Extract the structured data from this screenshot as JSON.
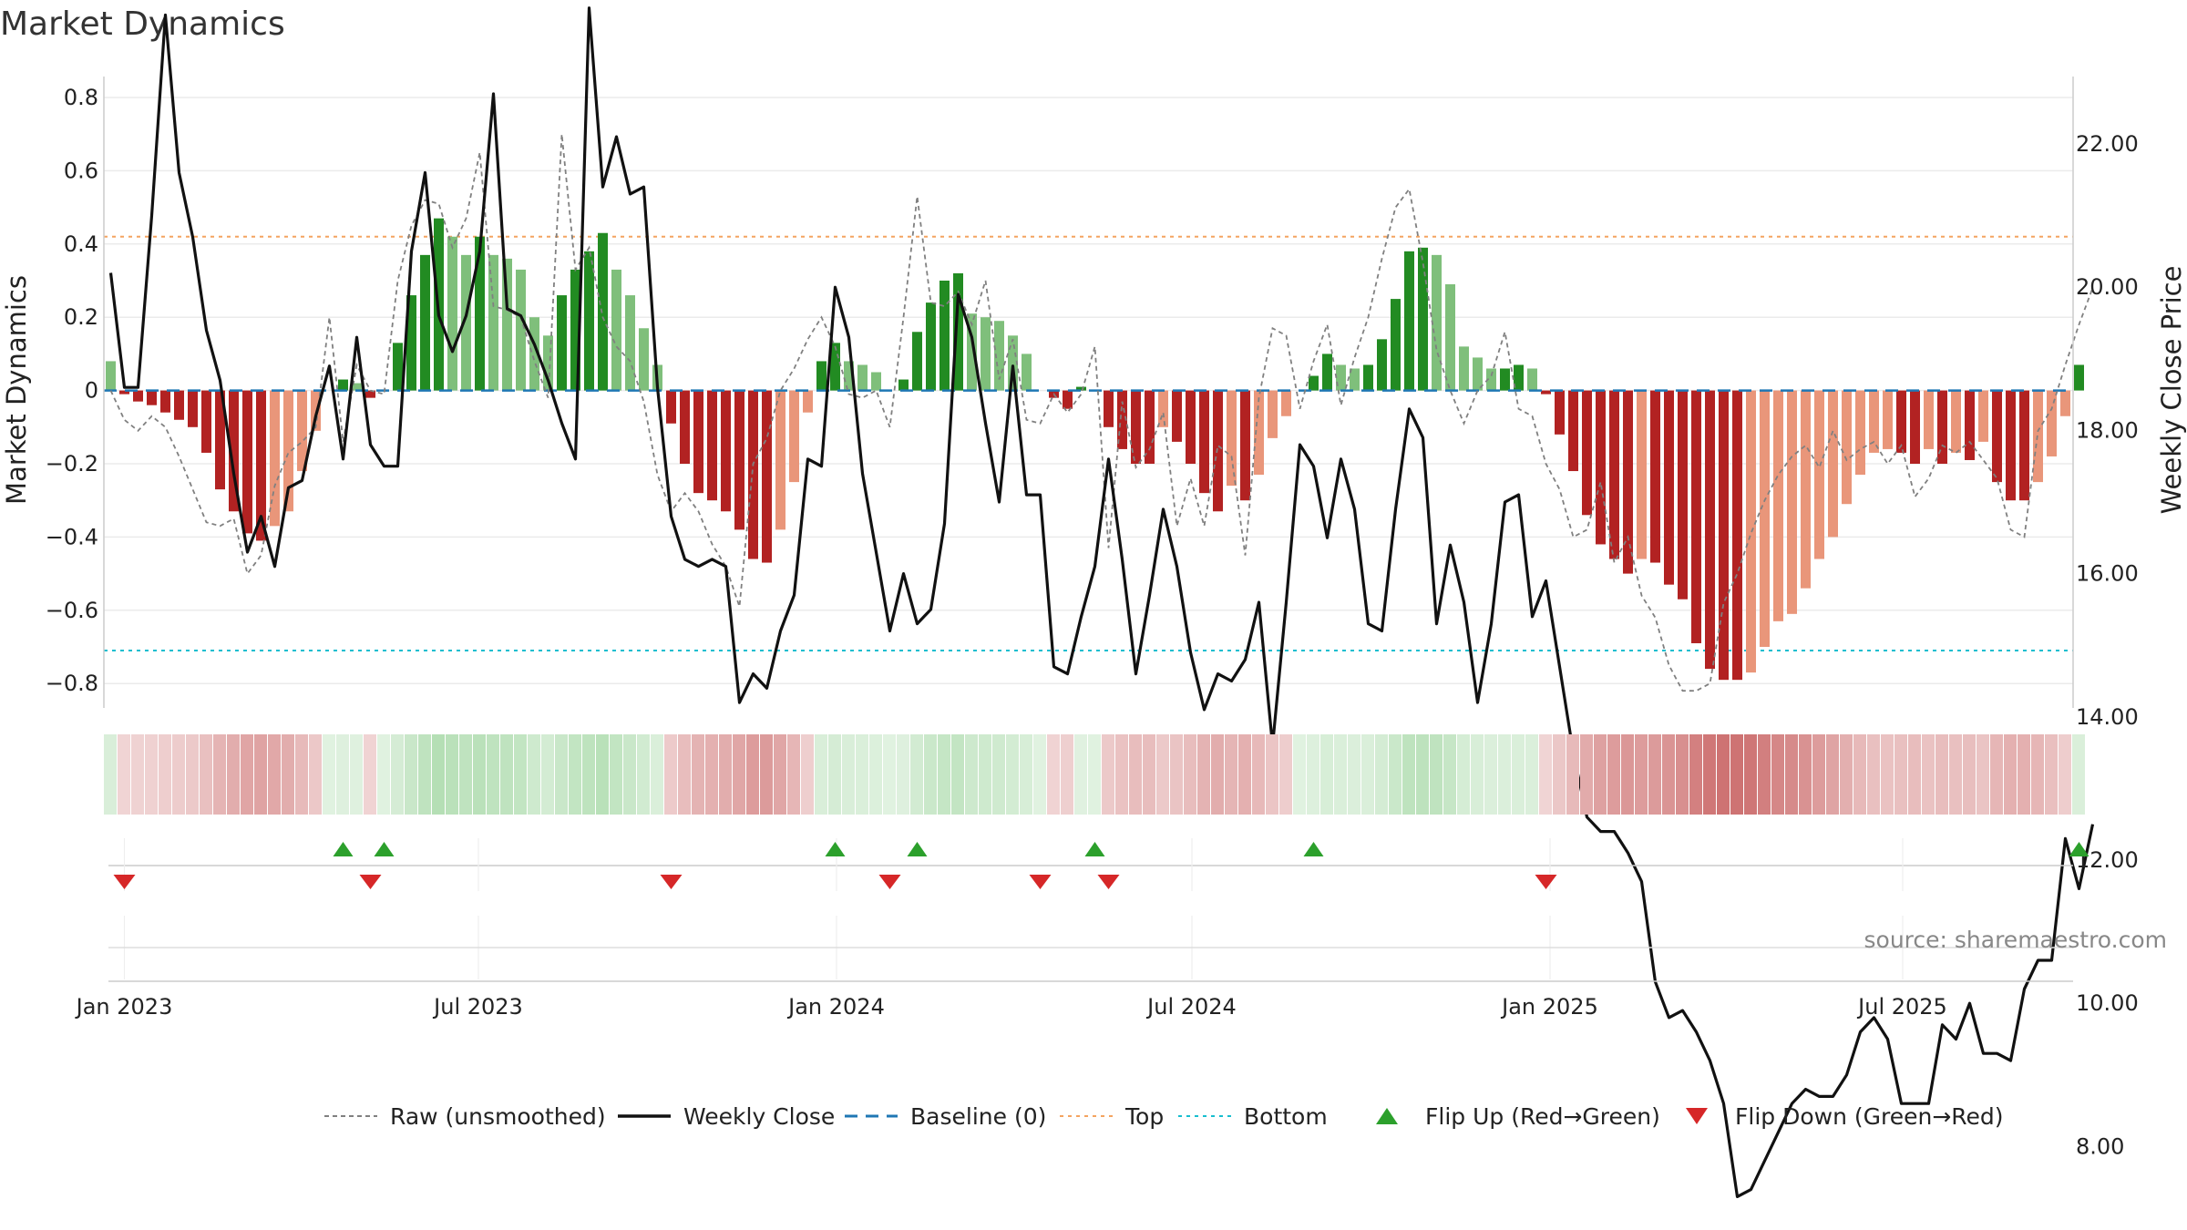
{
  "chart_data": {
    "type": "bar",
    "title": "Market Dynamics",
    "ylabel": "Market Dynamics",
    "y2label": "Weekly Close Price",
    "ylim": [
      -0.86,
      0.82
    ],
    "y2lim": [
      6.4,
      24.0
    ],
    "yticks": [
      "0.8",
      "0.6",
      "0.4",
      "0.2",
      "0",
      "−0.2",
      "−0.4",
      "−0.6",
      "−0.8"
    ],
    "y2ticks": [
      "22.00",
      "20.00",
      "18.00",
      "16.00",
      "14.00",
      "12.00",
      "10.00",
      "8.00"
    ],
    "x_start": "2022-12-26",
    "week_days": 7,
    "xticks": [
      {
        "label": "Jan 2023",
        "week": 1.0
      },
      {
        "label": "Jul 2023",
        "week": 26.9
      },
      {
        "label": "Jan 2024",
        "week": 53.1
      },
      {
        "label": "Jul 2024",
        "week": 79.1
      },
      {
        "label": "Jan 2025",
        "week": 105.3
      },
      {
        "label": "Jul 2025",
        "week": 131.1
      }
    ],
    "top_threshold": 0.42,
    "bottom_threshold": -0.71,
    "baseline": 0,
    "bars": [
      0.08,
      -0.01,
      -0.03,
      -0.04,
      -0.06,
      -0.08,
      -0.1,
      -0.17,
      -0.27,
      -0.33,
      -0.39,
      -0.41,
      -0.37,
      -0.33,
      -0.22,
      -0.11,
      -0.0,
      0.03,
      0.02,
      -0.02,
      0.0,
      0.13,
      0.26,
      0.37,
      0.47,
      0.42,
      0.37,
      0.42,
      0.37,
      0.36,
      0.33,
      0.2,
      0.15,
      0.26,
      0.33,
      0.38,
      0.43,
      0.33,
      0.26,
      0.17,
      0.07,
      -0.09,
      -0.2,
      -0.28,
      -0.3,
      -0.33,
      -0.38,
      -0.46,
      -0.47,
      -0.38,
      -0.25,
      -0.06,
      0.08,
      0.13,
      0.08,
      0.07,
      0.05,
      0.0,
      0.03,
      0.16,
      0.24,
      0.3,
      0.32,
      0.21,
      0.2,
      0.19,
      0.15,
      0.1,
      -0.0,
      -0.02,
      -0.05,
      0.01,
      0.0,
      -0.1,
      -0.16,
      -0.2,
      -0.2,
      -0.1,
      -0.14,
      -0.2,
      -0.28,
      -0.33,
      -0.26,
      -0.3,
      -0.23,
      -0.13,
      -0.07,
      0.0,
      0.04,
      0.1,
      0.07,
      0.06,
      0.07,
      0.14,
      0.25,
      0.38,
      0.39,
      0.37,
      0.29,
      0.12,
      0.09,
      0.06,
      0.06,
      0.07,
      0.06,
      -0.01,
      -0.12,
      -0.22,
      -0.34,
      -0.42,
      -0.46,
      -0.5,
      -0.46,
      -0.47,
      -0.53,
      -0.57,
      -0.69,
      -0.76,
      -0.79,
      -0.79,
      -0.77,
      -0.7,
      -0.63,
      -0.61,
      -0.54,
      -0.46,
      -0.4,
      -0.31,
      -0.23,
      -0.17,
      -0.16,
      -0.17,
      -0.2,
      -0.16,
      -0.2,
      -0.17,
      -0.19,
      -0.14,
      -0.25,
      -0.3,
      -0.3,
      -0.25,
      -0.18,
      -0.07,
      0.07
    ],
    "raw": [
      -0.0,
      -0.08,
      -0.11,
      -0.07,
      -0.1,
      -0.18,
      -0.27,
      -0.36,
      -0.37,
      -0.35,
      -0.5,
      -0.45,
      -0.26,
      -0.17,
      -0.14,
      -0.1,
      0.2,
      -0.14,
      0.07,
      0.0,
      -0.01,
      0.3,
      0.45,
      0.52,
      0.51,
      0.39,
      0.47,
      0.65,
      0.23,
      0.22,
      0.2,
      0.08,
      -0.02,
      0.7,
      0.33,
      0.39,
      0.2,
      0.12,
      0.08,
      -0.03,
      -0.23,
      -0.33,
      -0.28,
      -0.33,
      -0.42,
      -0.48,
      -0.59,
      -0.2,
      -0.13,
      -0.0,
      0.06,
      0.14,
      0.2,
      0.12,
      -0.01,
      -0.02,
      -0.0,
      -0.1,
      0.2,
      0.53,
      0.24,
      0.23,
      0.27,
      0.18,
      0.3,
      0.03,
      0.14,
      -0.08,
      -0.09,
      -0.01,
      -0.06,
      -0.01,
      0.12,
      -0.43,
      -0.03,
      -0.21,
      -0.16,
      -0.06,
      -0.37,
      -0.24,
      -0.37,
      -0.15,
      -0.18,
      -0.45,
      -0.02,
      0.17,
      0.15,
      -0.05,
      0.08,
      0.18,
      -0.04,
      0.09,
      0.2,
      0.36,
      0.5,
      0.55,
      0.35,
      0.11,
      -0.0,
      -0.09,
      0.0,
      0.04,
      0.16,
      -0.05,
      -0.07,
      -0.2,
      -0.27,
      -0.4,
      -0.38,
      -0.25,
      -0.47,
      -0.4,
      -0.56,
      -0.62,
      -0.75,
      -0.82,
      -0.82,
      -0.8,
      -0.58,
      -0.5,
      -0.39,
      -0.3,
      -0.23,
      -0.18,
      -0.15,
      -0.21,
      -0.11,
      -0.19,
      -0.16,
      -0.14,
      -0.2,
      -0.15,
      -0.29,
      -0.24,
      -0.15,
      -0.17,
      -0.14,
      -0.19,
      -0.24,
      -0.38,
      -0.4,
      -0.11,
      -0.05,
      0.07,
      0.18,
      0.28
    ],
    "close": [
      20.2,
      18.6,
      18.6,
      21.0,
      23.8,
      21.6,
      20.7,
      19.4,
      18.7,
      17.4,
      16.3,
      16.8,
      16.1,
      17.2,
      17.3,
      18.2,
      18.9,
      17.6,
      19.3,
      17.8,
      17.5,
      17.5,
      20.5,
      21.6,
      19.6,
      19.1,
      19.6,
      20.5,
      22.7,
      19.7,
      19.6,
      19.2,
      18.7,
      18.1,
      17.6,
      23.9,
      21.4,
      22.1,
      21.3,
      21.4,
      18.6,
      16.8,
      16.2,
      16.1,
      16.2,
      16.1,
      14.2,
      14.6,
      14.4,
      15.2,
      15.7,
      17.6,
      17.5,
      20.0,
      19.3,
      17.4,
      16.3,
      15.2,
      16.0,
      15.3,
      15.5,
      16.7,
      19.9,
      19.3,
      18.1,
      17.0,
      18.9,
      17.1,
      17.1,
      14.7,
      14.6,
      15.4,
      16.1,
      17.6,
      16.2,
      14.6,
      15.7,
      16.9,
      16.1,
      14.9,
      14.1,
      14.6,
      14.5,
      14.8,
      15.6,
      13.6,
      15.6,
      17.8,
      17.5,
      16.5,
      17.6,
      16.9,
      15.3,
      15.2,
      16.9,
      18.3,
      17.9,
      15.3,
      16.4,
      15.6,
      14.2,
      15.3,
      17.0,
      17.1,
      15.4,
      15.9,
      14.7,
      13.5,
      12.6,
      12.4,
      12.4,
      12.1,
      11.7,
      10.3,
      9.8,
      9.9,
      9.6,
      9.2,
      8.6,
      7.3,
      7.4,
      7.8,
      8.2,
      8.6,
      8.8,
      8.7,
      8.7,
      9.0,
      9.6,
      9.8,
      9.5,
      8.6,
      8.6,
      8.6,
      9.7,
      9.5,
      10.0,
      9.3,
      9.3,
      9.2,
      10.2,
      10.6,
      10.6,
      12.3,
      11.6,
      12.5
    ],
    "flip_up_weeks": [
      17,
      20,
      53,
      59,
      72,
      88,
      144
    ],
    "flip_down_weeks": [
      1,
      19,
      41,
      57,
      68,
      73,
      105
    ],
    "colors": {
      "strong_green": "#228b22",
      "light_green": "#7fbf7b",
      "strong_red": "#b22222",
      "light_red": "#e9967a",
      "raw": "#808080",
      "close": "#111111",
      "baseline": "#1f77b4",
      "top": "#f4a460",
      "bottom": "#17becf",
      "flip_up": "#2ca02c",
      "flip_down": "#d62728"
    },
    "legend": [
      {
        "label": "Raw (unsmoothed)",
        "kind": "dashed-line",
        "color": "#808080"
      },
      {
        "label": "Weekly Close",
        "kind": "line",
        "color": "#111111"
      },
      {
        "label": "Baseline (0)",
        "kind": "dashed-line",
        "color": "#1f77b4"
      },
      {
        "label": "Top",
        "kind": "dotted-line",
        "color": "#f4a460"
      },
      {
        "label": "Bottom",
        "kind": "dotted-line",
        "color": "#17becf"
      },
      {
        "label": "Flip Up (Red→Green)",
        "kind": "up-triangle",
        "color": "#2ca02c"
      },
      {
        "label": "Flip Down (Green→Red)",
        "kind": "down-triangle",
        "color": "#d62728"
      }
    ],
    "legend_position": "bottom-center",
    "source": "source: sharemaestro.com"
  }
}
